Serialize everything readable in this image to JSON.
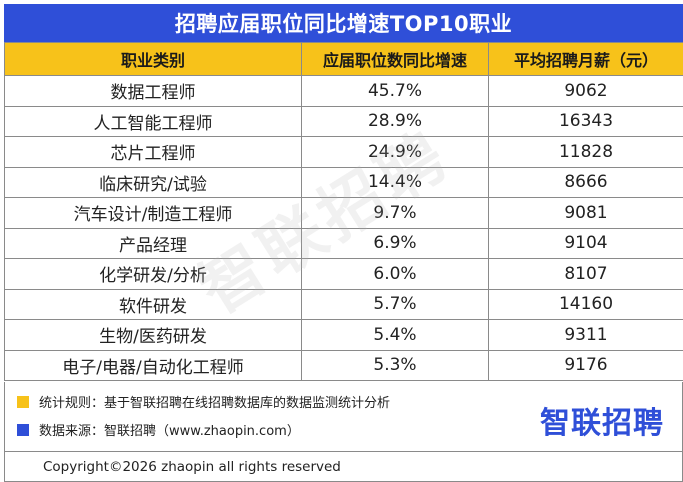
{
  "title": "招聘应届职位同比增速TOP10职业",
  "watermark": "智联招聘",
  "table": {
    "headers": [
      "职业类别",
      "应届职位数同比增速",
      "平均招聘月薪（元）"
    ],
    "rows": [
      [
        "数据工程师",
        "45.7%",
        "9062"
      ],
      [
        "人工智能工程师",
        "28.9%",
        "16343"
      ],
      [
        "芯片工程师",
        "24.9%",
        "11828"
      ],
      [
        "临床研究/试验",
        "14.4%",
        "8666"
      ],
      [
        "汽车设计/制造工程师",
        "9.7%",
        "9081"
      ],
      [
        "产品经理",
        "6.9%",
        "9104"
      ],
      [
        "化学研发/分析",
        "6.0%",
        "8107"
      ],
      [
        "软件研发",
        "5.7%",
        "14160"
      ],
      [
        "生物/医药研发",
        "5.4%",
        "9311"
      ],
      [
        "电子/电器/自动化工程师",
        "5.3%",
        "9176"
      ]
    ]
  },
  "notes": {
    "rule": "统计规则：基于智联招聘在线招聘数据库的数据监测统计分析",
    "source": "数据来源：智联招聘（www.zhaopin.com）"
  },
  "logo_text": "智联招聘",
  "copyright": "Copyright©2026 zhaopin all rights reserved",
  "colors": {
    "title_bg": "#2f4fd8",
    "header_bg": "#f7c21a",
    "note_yellow": "#f7c21a",
    "note_blue": "#2f4fd8"
  }
}
